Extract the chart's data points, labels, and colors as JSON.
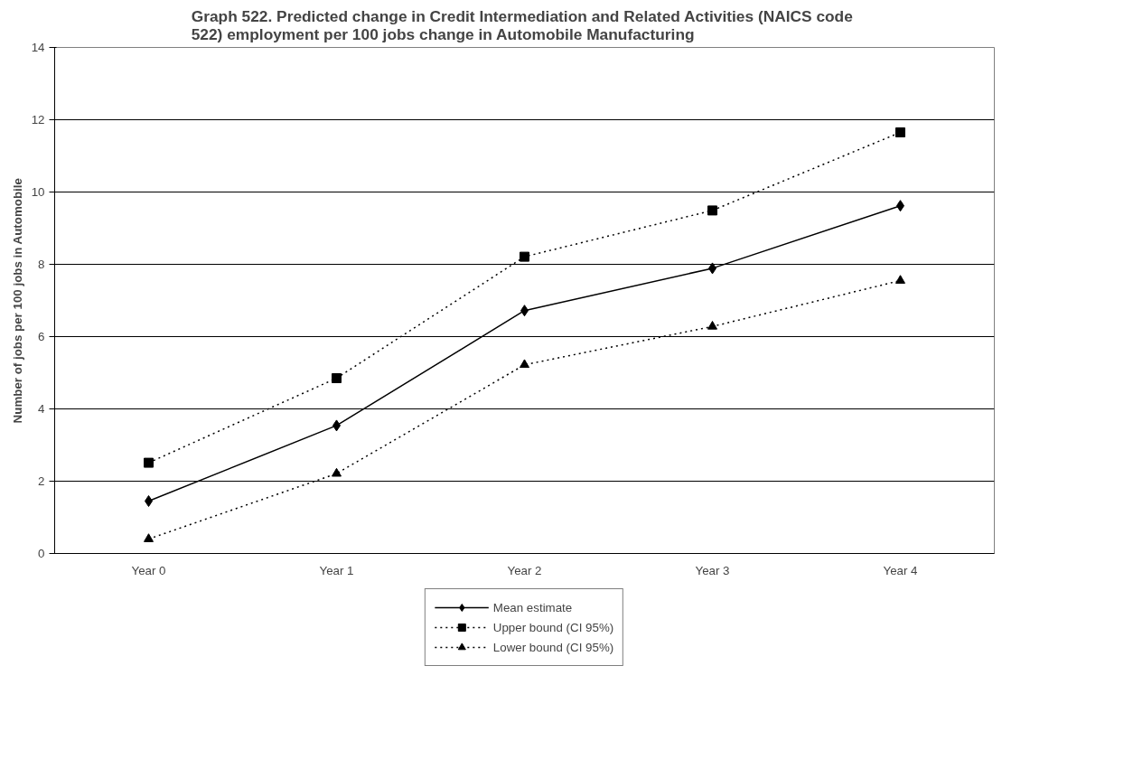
{
  "chart_data": {
    "type": "line",
    "title": "Graph 522.  Predicted change in Credit Intermediation and Related Activities (NAICS code 522) employment per 100 jobs change in Automobile Manufacturing",
    "ylabel": "Number of jobs per 100 jobs in Automobile",
    "categories": [
      "Year 0",
      "Year 1",
      "Year 2",
      "Year 3",
      "Year 4"
    ],
    "ylim": [
      0,
      14
    ],
    "yticks": [
      0,
      2,
      4,
      6,
      8,
      10,
      12,
      14
    ],
    "grid": "y",
    "legend": "bottom",
    "series": [
      {
        "name": "Mean estimate",
        "color": "#000000",
        "marker": "diamond",
        "line_style": "solid",
        "values": [
          1.45,
          3.54,
          6.72,
          7.89,
          9.62
        ]
      },
      {
        "name": "Upper bound (CI 95%)",
        "color": "#000000",
        "marker": "square",
        "line_style": "dotted",
        "values": [
          2.51,
          4.85,
          8.21,
          9.49,
          11.65
        ]
      },
      {
        "name": "Lower bound (CI 95%)",
        "color": "#000000",
        "marker": "triangle",
        "line_style": "dotted",
        "values": [
          0.4,
          2.21,
          5.22,
          6.28,
          7.55
        ]
      }
    ]
  }
}
